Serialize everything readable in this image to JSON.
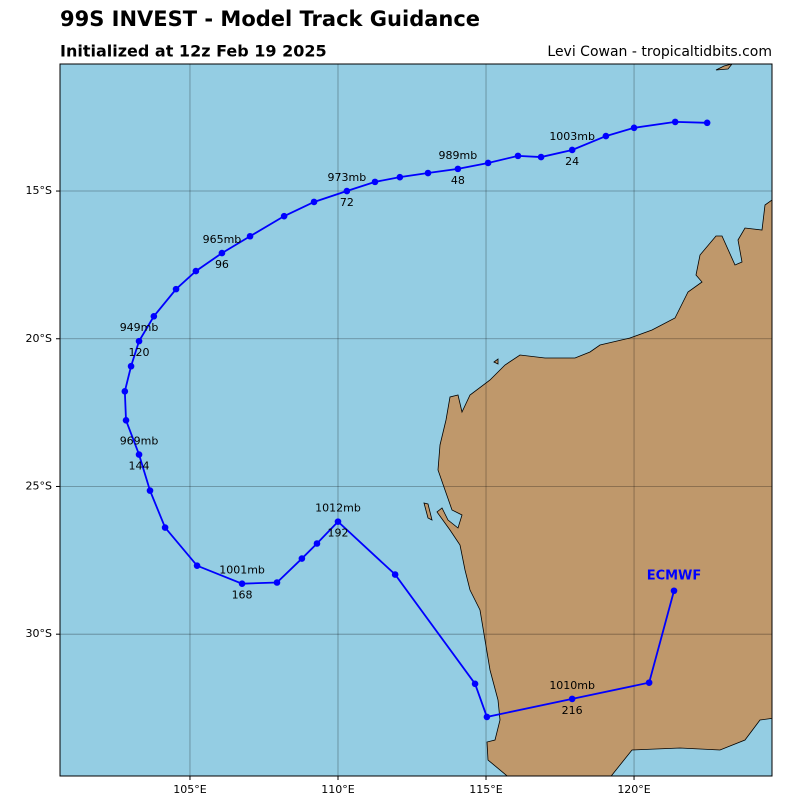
{
  "header": {
    "title": "99S INVEST - Model Track Guidance",
    "subtitle": "Initialized at 12z Feb 19 2025",
    "credit": "Levi Cowan - tropicaltidbits.com"
  },
  "map": {
    "xlim": [
      100.61,
      124.66
    ],
    "ylim": [
      -34.8,
      -10.7
    ],
    "xticks": [
      {
        "value": 105,
        "label": "105°E"
      },
      {
        "value": 110,
        "label": "110°E"
      },
      {
        "value": 115,
        "label": "115°E"
      },
      {
        "value": 120,
        "label": "120°E"
      }
    ],
    "yticks": [
      {
        "value": -15,
        "label": "15°S"
      },
      {
        "value": -20,
        "label": "20°S"
      },
      {
        "value": -25,
        "label": "25°S"
      },
      {
        "value": -30,
        "label": "30°S"
      }
    ],
    "ocean_color": "#94cde3",
    "land_color": "#bf986b"
  },
  "track": {
    "name": "ECMWF",
    "color": "#0000ff",
    "points": [
      {
        "lon": 122.47,
        "lat": -12.69
      },
      {
        "lon": 121.39,
        "lat": -12.66
      },
      {
        "lon": 120.0,
        "lat": -12.86
      },
      {
        "lon": 119.05,
        "lat": -13.14
      },
      {
        "lon": 117.91,
        "lat": -13.61,
        "pressure": "1003mb",
        "hour": 24
      },
      {
        "lon": 116.86,
        "lat": -13.85
      },
      {
        "lon": 116.08,
        "lat": -13.81
      },
      {
        "lon": 115.07,
        "lat": -14.05
      },
      {
        "lon": 114.05,
        "lat": -14.25,
        "pressure": "989mb",
        "hour": 48
      },
      {
        "lon": 113.04,
        "lat": -14.39
      },
      {
        "lon": 112.09,
        "lat": -14.53
      },
      {
        "lon": 111.25,
        "lat": -14.69
      },
      {
        "lon": 110.3,
        "lat": -15.0,
        "pressure": "973mb",
        "hour": 72
      },
      {
        "lon": 109.19,
        "lat": -15.37
      },
      {
        "lon": 108.18,
        "lat": -15.85
      },
      {
        "lon": 107.03,
        "lat": -16.53
      },
      {
        "lon": 106.08,
        "lat": -17.1,
        "pressure": "965mb",
        "hour": 96
      },
      {
        "lon": 105.2,
        "lat": -17.71
      },
      {
        "lon": 104.53,
        "lat": -18.32
      },
      {
        "lon": 103.78,
        "lat": -19.24
      },
      {
        "lon": 103.28,
        "lat": -20.08,
        "pressure": "949mb",
        "hour": 120
      },
      {
        "lon": 103.01,
        "lat": -20.93
      },
      {
        "lon": 102.8,
        "lat": -21.78
      },
      {
        "lon": 102.84,
        "lat": -22.76
      },
      {
        "lon": 103.28,
        "lat": -23.92,
        "pressure": "969mb",
        "hour": 144
      },
      {
        "lon": 103.65,
        "lat": -25.14
      },
      {
        "lon": 104.16,
        "lat": -26.39
      },
      {
        "lon": 105.24,
        "lat": -27.68
      },
      {
        "lon": 106.76,
        "lat": -28.29,
        "pressure": "1001mb",
        "hour": 168
      },
      {
        "lon": 107.94,
        "lat": -28.25
      },
      {
        "lon": 108.78,
        "lat": -27.44
      },
      {
        "lon": 109.29,
        "lat": -26.93
      },
      {
        "lon": 110.0,
        "lat": -26.19,
        "pressure": "1012mb",
        "hour": 192
      },
      {
        "lon": 111.93,
        "lat": -27.98
      },
      {
        "lon": 114.63,
        "lat": -31.68
      },
      {
        "lon": 115.03,
        "lat": -32.8
      },
      {
        "lon": 117.91,
        "lat": -32.19,
        "pressure": "1010mb",
        "hour": 216
      },
      {
        "lon": 120.51,
        "lat": -31.64
      },
      {
        "lon": 121.35,
        "lat": -28.53
      }
    ]
  }
}
